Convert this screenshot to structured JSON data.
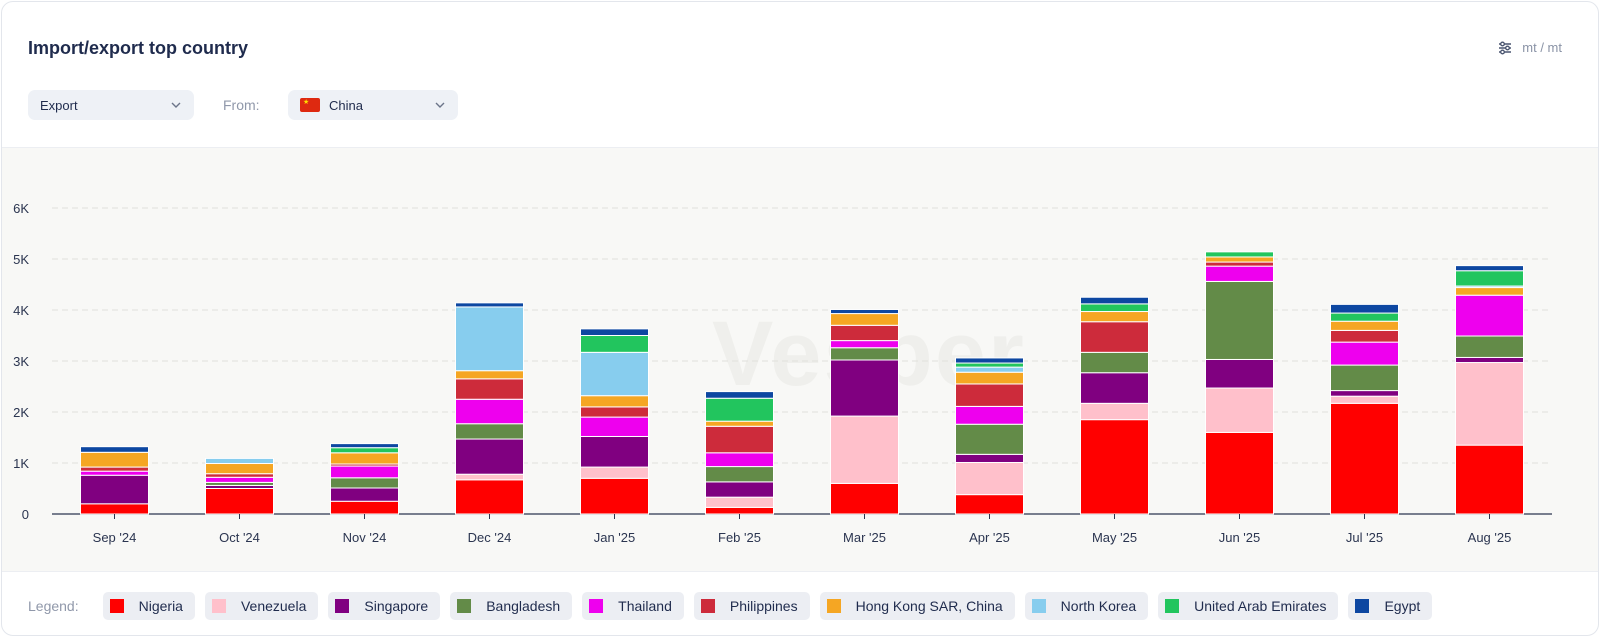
{
  "header": {
    "title": "Import/export top country",
    "units_label": "mt / mt",
    "settings_icon": "sliders-icon"
  },
  "filters": {
    "direction": "Export",
    "from_label": "From:",
    "country": "China",
    "country_flag": "china-flag-icon"
  },
  "watermark": "Vesper",
  "legend": {
    "label": "Legend:",
    "items": [
      {
        "name": "Nigeria",
        "color": "#ff0000"
      },
      {
        "name": "Venezuela",
        "color": "#ffc0cb"
      },
      {
        "name": "Singapore",
        "color": "#800080"
      },
      {
        "name": "Bangladesh",
        "color": "#638b48"
      },
      {
        "name": "Thailand",
        "color": "#ee00ee"
      },
      {
        "name": "Philippines",
        "color": "#cd2b3b"
      },
      {
        "name": "Hong Kong SAR, China",
        "color": "#f5a623"
      },
      {
        "name": "North Korea",
        "color": "#87cdee"
      },
      {
        "name": "United Arab Emirates",
        "color": "#22c55e"
      },
      {
        "name": "Egypt",
        "color": "#0d47a1"
      }
    ]
  },
  "chart_data": {
    "type": "bar",
    "stacked": true,
    "categories": [
      "Sep '24",
      "Oct '24",
      "Nov '24",
      "Dec '24",
      "Jan '25",
      "Feb '25",
      "Mar '25",
      "Apr '25",
      "May '25",
      "Jun '25",
      "Jul '25",
      "Aug '25"
    ],
    "y_ticks": [
      "0",
      "1K",
      "2K",
      "3K",
      "4K",
      "5K",
      "6K"
    ],
    "ylim": [
      0,
      6000
    ],
    "grid": true,
    "series": [
      {
        "name": "Nigeria",
        "color": "#ff0000",
        "values": [
          200,
          500,
          250,
          670,
          700,
          130,
          600,
          380,
          1850,
          1600,
          2170,
          1350
        ]
      },
      {
        "name": "Venezuela",
        "color": "#ffc0cb",
        "values": [
          0,
          0,
          0,
          110,
          220,
          200,
          1320,
          630,
          320,
          870,
          140,
          1620
        ]
      },
      {
        "name": "Singapore",
        "color": "#800080",
        "values": [
          560,
          60,
          260,
          690,
          600,
          300,
          1100,
          160,
          600,
          560,
          110,
          100
        ]
      },
      {
        "name": "Bangladesh",
        "color": "#638b48",
        "values": [
          0,
          60,
          200,
          300,
          0,
          300,
          240,
          590,
          400,
          1530,
          500,
          420
        ]
      },
      {
        "name": "Thailand",
        "color": "#ee00ee",
        "values": [
          80,
          100,
          230,
          480,
          380,
          270,
          140,
          350,
          0,
          300,
          450,
          800
        ]
      },
      {
        "name": "Philippines",
        "color": "#cd2b3b",
        "values": [
          80,
          70,
          40,
          400,
          200,
          520,
          300,
          440,
          600,
          80,
          230,
          0
        ]
      },
      {
        "name": "Hong Kong SAR, China",
        "color": "#f5a623",
        "values": [
          290,
          200,
          220,
          160,
          220,
          100,
          230,
          230,
          200,
          100,
          180,
          150
        ]
      },
      {
        "name": "North Korea",
        "color": "#87cdee",
        "values": [
          0,
          100,
          0,
          1250,
          850,
          0,
          0,
          100,
          0,
          0,
          0,
          30
        ]
      },
      {
        "name": "United Arab Emirates",
        "color": "#22c55e",
        "values": [
          0,
          0,
          100,
          0,
          330,
          450,
          0,
          80,
          150,
          100,
          160,
          300
        ]
      },
      {
        "name": "Egypt",
        "color": "#0d47a1",
        "values": [
          110,
          0,
          80,
          80,
          130,
          130,
          80,
          100,
          130,
          0,
          170,
          100
        ]
      }
    ]
  }
}
